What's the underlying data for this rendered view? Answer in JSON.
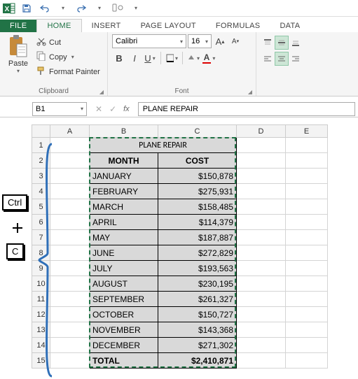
{
  "qat": {
    "save_tip": "Save",
    "undo_tip": "Undo",
    "redo_tip": "Redo",
    "customize_tip": "Customize"
  },
  "tabs": {
    "file": "FILE",
    "home": "HOME",
    "insert": "INSERT",
    "page_layout": "PAGE LAYOUT",
    "formulas": "FORMULAS",
    "data": "DATA"
  },
  "clipboard": {
    "paste": "Paste",
    "cut": "Cut",
    "copy": "Copy",
    "format_painter": "Format Painter",
    "group_label": "Clipboard"
  },
  "font": {
    "name": "Calibri",
    "size": "16",
    "group_label": "Font",
    "increase_tip": "A",
    "decrease_tip": "A"
  },
  "alignment": {
    "group_label": "Alignm"
  },
  "formula_bar": {
    "cell_ref": "B1",
    "value": "PLANE REPAIR"
  },
  "sheet": {
    "columns": [
      "A",
      "B",
      "C",
      "D",
      "E"
    ],
    "col_widths": {
      "A": 56,
      "B": 98,
      "C": 112,
      "D": 70,
      "E": 60
    },
    "title": "PLANE REPAIR",
    "headers": {
      "month": "MONTH",
      "cost": "COST"
    },
    "rows": [
      {
        "month": "JANUARY",
        "cost": "$150,878"
      },
      {
        "month": "FEBRUARY",
        "cost": "$275,931"
      },
      {
        "month": "MARCH",
        "cost": "$158,485"
      },
      {
        "month": "APRIL",
        "cost": "$114,379"
      },
      {
        "month": "MAY",
        "cost": "$187,887"
      },
      {
        "month": "JUNE",
        "cost": "$272,829"
      },
      {
        "month": "JULY",
        "cost": "$193,563"
      },
      {
        "month": "AUGUST",
        "cost": "$230,195"
      },
      {
        "month": "SEPTEMBER",
        "cost": "$261,327"
      },
      {
        "month": "OCTOBER",
        "cost": "$150,727"
      },
      {
        "month": "NOVEMBER",
        "cost": "$143,368"
      },
      {
        "month": "DECEMBER",
        "cost": "$271,302"
      }
    ],
    "total": {
      "label": "TOTAL",
      "value": "$2,410,871"
    },
    "row_count": 15,
    "selection": {
      "top_row": 1,
      "bottom_row": 15,
      "left_col": "B",
      "right_col": "C"
    },
    "colors": {
      "cell_fill": "#d9d9d9",
      "cell_border": "#000000",
      "grid_border": "#d4d4d4",
      "header_bg": "#f3f3f3",
      "select_header_bg": "#d9ecdf",
      "excel_green": "#217346",
      "brace_blue": "#2f6fb8"
    }
  },
  "annotation": {
    "key1": "Ctrl",
    "plus": "+",
    "key2": "C"
  }
}
